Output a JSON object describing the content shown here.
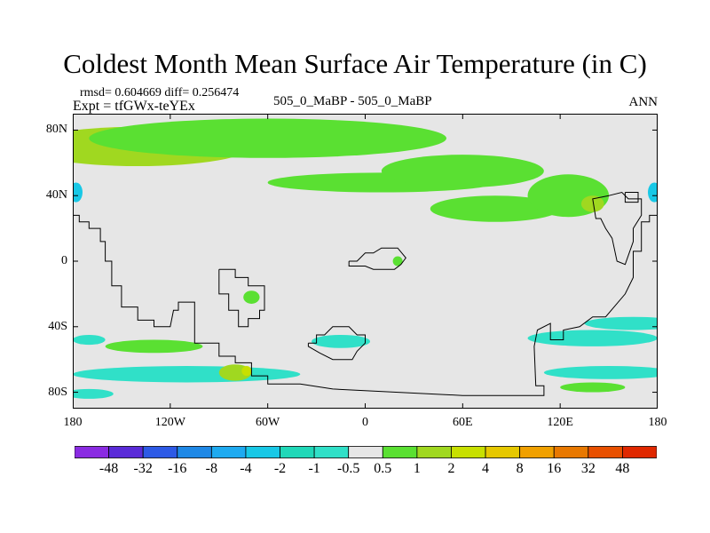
{
  "chart_data": {
    "type": "heatmap",
    "title": "Coldest Month Mean Surface Air Temperature (in C)",
    "stats_line": "rmsd= 0.604669 diff= 0.256474",
    "experiment_line": "Expt = tfGWx-teYEx",
    "comparison": "505_0_MaBP - 505_0_MaBP",
    "season": "ANN",
    "xlabel": "",
    "ylabel": "",
    "xlim": [
      -180,
      180
    ],
    "ylim": [
      -90,
      90
    ],
    "x_ticks": [
      {
        "value": -180,
        "label": "180"
      },
      {
        "value": -120,
        "label": "120W"
      },
      {
        "value": -60,
        "label": "60W"
      },
      {
        "value": 0,
        "label": "0"
      },
      {
        "value": 60,
        "label": "60E"
      },
      {
        "value": 120,
        "label": "120E"
      },
      {
        "value": 180,
        "label": "180"
      }
    ],
    "y_ticks": [
      {
        "value": 80,
        "label": "80N"
      },
      {
        "value": 40,
        "label": "40N"
      },
      {
        "value": 0,
        "label": "0"
      },
      {
        "value": -40,
        "label": "40S"
      },
      {
        "value": -80,
        "label": "80S"
      }
    ],
    "background_bin": "-0.5 to 0.5",
    "colorbar": {
      "colors": [
        "#8a2be2",
        "#5a2bd8",
        "#2d5ae6",
        "#1e88e6",
        "#1eaaf0",
        "#18c8e6",
        "#20d8b8",
        "#30e0c8",
        "#e6e6e6",
        "#5ae032",
        "#a0d820",
        "#c8e000",
        "#e6c800",
        "#f0a000",
        "#e87800",
        "#e85000",
        "#e02800"
      ],
      "labels": [
        "-48",
        "-32",
        "-16",
        "-8",
        "-4",
        "-2",
        "-1",
        "-0.5",
        "0.5",
        "1",
        "2",
        "4",
        "8",
        "16",
        "32",
        "48"
      ]
    },
    "regions": [
      {
        "bin": "1 to 2",
        "lon": -140,
        "lat": 70,
        "rx": 70,
        "ry": 12
      },
      {
        "bin": "0.5 to 1",
        "lon": -60,
        "lat": 75,
        "rx": 110,
        "ry": 12
      },
      {
        "bin": "0.5 to 1",
        "lon": 10,
        "lat": 48,
        "rx": 70,
        "ry": 6
      },
      {
        "bin": "0.5 to 1",
        "lon": 60,
        "lat": 55,
        "rx": 50,
        "ry": 10
      },
      {
        "bin": "0.5 to 1",
        "lon": 80,
        "lat": 32,
        "rx": 40,
        "ry": 8
      },
      {
        "bin": "0.5 to 1",
        "lon": 125,
        "lat": 40,
        "rx": 25,
        "ry": 13
      },
      {
        "bin": "1 to 2",
        "lon": 140,
        "lat": 35,
        "rx": 7,
        "ry": 5
      },
      {
        "bin": "-4 to -2",
        "lon": -178,
        "lat": 42,
        "rx": 4,
        "ry": 6
      },
      {
        "bin": "-4 to -2",
        "lon": 178,
        "lat": 42,
        "rx": 4,
        "ry": 6
      },
      {
        "bin": "0.5 to 1",
        "lon": -70,
        "lat": -22,
        "rx": 5,
        "ry": 4
      },
      {
        "bin": "0.5 to 1",
        "lon": 20,
        "lat": 0,
        "rx": 3,
        "ry": 3
      },
      {
        "bin": "0.5 to 1",
        "lon": -130,
        "lat": -52,
        "rx": 30,
        "ry": 4
      },
      {
        "bin": "-1 to -0.5",
        "lon": -170,
        "lat": -48,
        "rx": 10,
        "ry": 3
      },
      {
        "bin": "-1 to -0.5",
        "lon": -15,
        "lat": -49,
        "rx": 18,
        "ry": 4
      },
      {
        "bin": "-1 to -0.5",
        "lon": 165,
        "lat": -38,
        "rx": 30,
        "ry": 4
      },
      {
        "bin": "-1 to -0.5",
        "lon": 140,
        "lat": -47,
        "rx": 40,
        "ry": 5
      },
      {
        "bin": "-1 to -0.5",
        "lon": -110,
        "lat": -69,
        "rx": 70,
        "ry": 5
      },
      {
        "bin": "-1 to -0.5",
        "lon": 150,
        "lat": -68,
        "rx": 40,
        "ry": 4
      },
      {
        "bin": "1 to 2",
        "lon": -80,
        "lat": -68,
        "rx": 10,
        "ry": 5
      },
      {
        "bin": "2 to 4",
        "lon": -73,
        "lat": -67,
        "rx": 3,
        "ry": 3
      },
      {
        "bin": "0.5 to 1",
        "lon": 140,
        "lat": -77,
        "rx": 20,
        "ry": 3
      },
      {
        "bin": "-1 to -0.5",
        "lon": -170,
        "lat": -81,
        "rx": 15,
        "ry": 3
      }
    ],
    "coastlines": [
      {
        "name": "continent-north-pacific",
        "points": [
          [
            -180,
            28
          ],
          [
            -176,
            28
          ],
          [
            -176,
            24
          ],
          [
            -170,
            24
          ],
          [
            -170,
            20
          ],
          [
            -163,
            20
          ],
          [
            -163,
            12
          ],
          [
            -160,
            12
          ],
          [
            -160,
            0
          ],
          [
            -156,
            0
          ],
          [
            -156,
            -15
          ],
          [
            -150,
            -15
          ],
          [
            -150,
            -28
          ],
          [
            -140,
            -28
          ],
          [
            -140,
            -36
          ],
          [
            -130,
            -36
          ],
          [
            -130,
            -40
          ],
          [
            -120,
            -40
          ],
          [
            -118,
            -30
          ],
          [
            -115,
            -30
          ],
          [
            -115,
            -25
          ],
          [
            -105,
            -25
          ],
          [
            -105,
            -50
          ],
          [
            -90,
            -50
          ],
          [
            -90,
            -58
          ],
          [
            -80,
            -58
          ],
          [
            -80,
            -62
          ],
          [
            -70,
            -62
          ],
          [
            -70,
            -70
          ],
          [
            -60,
            -70
          ],
          [
            -60,
            -75
          ],
          [
            -40,
            -75
          ],
          [
            -20,
            -78
          ],
          [
            60,
            -82
          ],
          [
            100,
            -82
          ],
          [
            110,
            -82
          ],
          [
            110,
            -76
          ],
          [
            105,
            -76
          ],
          [
            104,
            -52
          ],
          [
            106,
            -42
          ],
          [
            114,
            -38
          ],
          [
            114,
            -48
          ],
          [
            122,
            -48
          ],
          [
            122,
            -42
          ],
          [
            132,
            -40
          ],
          [
            140,
            -34
          ],
          [
            148,
            -34
          ],
          [
            160,
            -20
          ],
          [
            165,
            -10
          ],
          [
            165,
            6
          ],
          [
            170,
            6
          ],
          [
            170,
            24
          ],
          [
            175,
            24
          ],
          [
            175,
            28
          ],
          [
            180,
            28
          ]
        ]
      },
      {
        "name": "continent-africa-block",
        "points": [
          [
            -90,
            -5
          ],
          [
            -80,
            -5
          ],
          [
            -80,
            -10
          ],
          [
            -72,
            -10
          ],
          [
            -72,
            -15
          ],
          [
            -62,
            -15
          ],
          [
            -62,
            -30
          ],
          [
            -65,
            -30
          ],
          [
            -65,
            -35
          ],
          [
            -72,
            -35
          ],
          [
            -72,
            -40
          ],
          [
            -78,
            -40
          ],
          [
            -78,
            -30
          ],
          [
            -84,
            -30
          ],
          [
            -84,
            -20
          ],
          [
            -90,
            -20
          ],
          [
            -90,
            -5
          ]
        ]
      },
      {
        "name": "continent-india-block",
        "points": [
          [
            -10,
            0
          ],
          [
            -5,
            0
          ],
          [
            0,
            5
          ],
          [
            5,
            5
          ],
          [
            10,
            8
          ],
          [
            20,
            8
          ],
          [
            25,
            2
          ],
          [
            22,
            -2
          ],
          [
            18,
            -5
          ],
          [
            5,
            -5
          ],
          [
            0,
            -3
          ],
          [
            -10,
            -3
          ],
          [
            -10,
            0
          ]
        ]
      },
      {
        "name": "continent-south-block",
        "points": [
          [
            -35,
            -50
          ],
          [
            -30,
            -50
          ],
          [
            -30,
            -45
          ],
          [
            -25,
            -45
          ],
          [
            -20,
            -40
          ],
          [
            -10,
            -40
          ],
          [
            -5,
            -45
          ],
          [
            0,
            -45
          ],
          [
            0,
            -50
          ],
          [
            -5,
            -55
          ],
          [
            -8,
            -60
          ],
          [
            -20,
            -60
          ],
          [
            -28,
            -56
          ],
          [
            -35,
            -52
          ],
          [
            -35,
            -50
          ]
        ]
      },
      {
        "name": "continent-east-block",
        "points": [
          [
            150,
            40
          ],
          [
            158,
            42
          ],
          [
            162,
            38
          ],
          [
            170,
            38
          ],
          [
            170,
            28
          ],
          [
            165,
            20
          ],
          [
            165,
            12
          ],
          [
            160,
            -2
          ],
          [
            155,
            0
          ],
          [
            152,
            14
          ],
          [
            148,
            20
          ],
          [
            145,
            26
          ],
          [
            142,
            26
          ],
          [
            140,
            38
          ],
          [
            150,
            40
          ]
        ]
      },
      {
        "name": "island-east",
        "points": [
          [
            160,
            42
          ],
          [
            168,
            42
          ],
          [
            168,
            36
          ],
          [
            160,
            36
          ],
          [
            160,
            42
          ]
        ]
      }
    ]
  }
}
